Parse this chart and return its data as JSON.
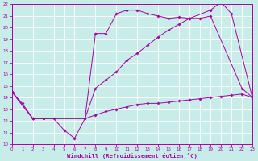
{
  "xlabel": "Windchill (Refroidissement éolien,°C)",
  "bg_color": "#c8ece8",
  "grid_color": "#aadddd",
  "line_color": "#aa00aa",
  "xlim": [
    0,
    23
  ],
  "ylim": [
    10,
    22
  ],
  "xticks": [
    0,
    1,
    2,
    3,
    4,
    5,
    6,
    7,
    8,
    9,
    10,
    11,
    12,
    13,
    14,
    15,
    16,
    17,
    18,
    19,
    20,
    21,
    22,
    23
  ],
  "yticks": [
    10,
    11,
    12,
    13,
    14,
    15,
    16,
    17,
    18,
    19,
    20,
    21,
    22
  ],
  "s1_x": [
    0,
    1,
    2,
    3,
    4,
    5,
    6,
    7,
    8,
    9,
    10,
    11,
    12,
    13,
    14,
    15,
    16,
    17,
    18,
    19,
    22,
    23
  ],
  "s1_y": [
    14.5,
    13.5,
    12.2,
    12.2,
    12.2,
    11.2,
    10.5,
    12.2,
    19.5,
    19.5,
    21.2,
    21.5,
    21.5,
    21.2,
    21.0,
    20.8,
    20.9,
    20.8,
    20.8,
    21.0,
    14.8,
    14.0
  ],
  "s2_x": [
    0,
    2,
    3,
    7,
    8,
    9,
    10,
    11,
    12,
    13,
    14,
    15,
    16,
    17,
    19,
    20,
    21,
    23
  ],
  "s2_y": [
    14.5,
    12.2,
    12.2,
    12.2,
    14.8,
    15.5,
    16.2,
    17.2,
    17.8,
    18.5,
    19.2,
    19.8,
    20.3,
    20.8,
    21.5,
    22.2,
    21.2,
    14.0
  ],
  "s3_x": [
    0,
    2,
    3,
    7,
    8,
    9,
    10,
    11,
    12,
    13,
    14,
    15,
    16,
    17,
    18,
    19,
    20,
    21,
    22,
    23
  ],
  "s3_y": [
    14.5,
    12.2,
    12.2,
    12.2,
    12.5,
    12.8,
    13.0,
    13.2,
    13.4,
    13.5,
    13.5,
    13.6,
    13.7,
    13.8,
    13.9,
    14.0,
    14.1,
    14.2,
    14.3,
    14.0
  ]
}
